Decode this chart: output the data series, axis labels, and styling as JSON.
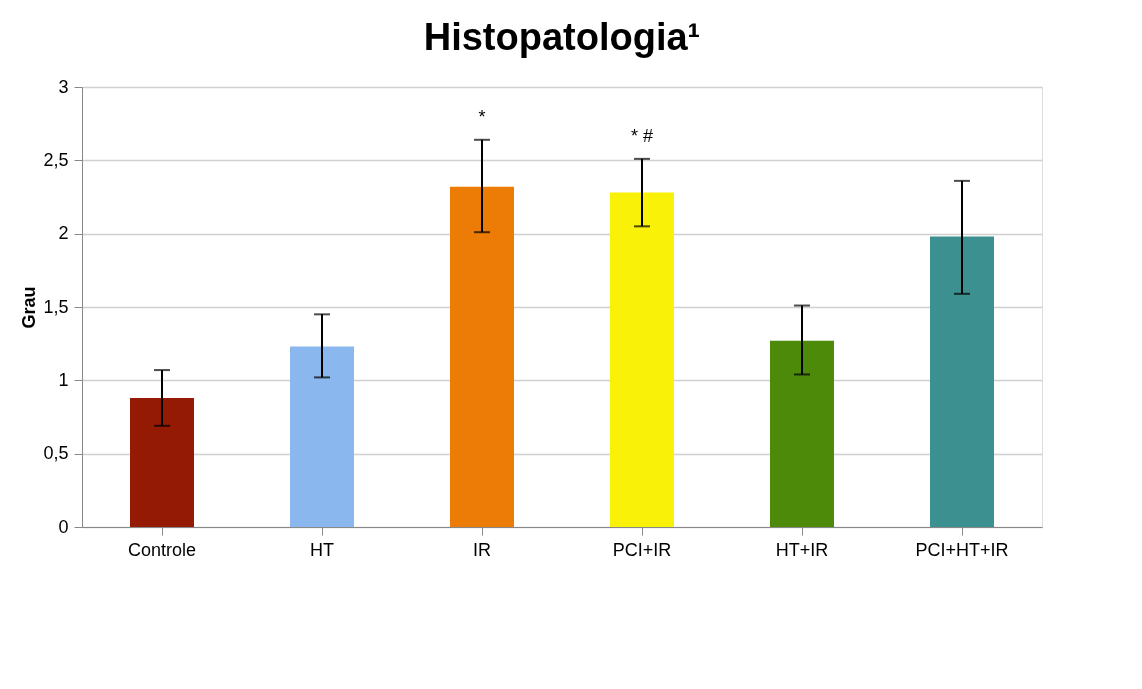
{
  "chart_data": {
    "type": "bar",
    "title": "Histopatologia¹",
    "ylabel": "Grau",
    "categories": [
      "Controle",
      "HT",
      "IR",
      "PCI+IR",
      "HT+IR",
      "PCI+HT+IR"
    ],
    "values": [
      0.88,
      1.23,
      2.32,
      2.28,
      1.27,
      1.98
    ],
    "colors": [
      "#951a04",
      "#8ab8ee",
      "#ec7c05",
      "#f9f208",
      "#4e8a0a",
      "#3d9090"
    ],
    "errors": [
      [
        0.69,
        1.07
      ],
      [
        1.02,
        1.45
      ],
      [
        2.01,
        2.64
      ],
      [
        2.05,
        2.51
      ],
      [
        1.04,
        1.51
      ],
      [
        1.59,
        2.36
      ]
    ],
    "ylim": [
      0,
      3
    ],
    "yticks": [
      0,
      {
        "value": 0.5,
        "label": "0,5"
      },
      1,
      {
        "value": 1.5,
        "label": "1,5"
      },
      2,
      {
        "value": 2.5,
        "label": "2,5"
      },
      3
    ],
    "grid": "y",
    "annotations": [
      {
        "text": "*",
        "x": "IR",
        "y": 2.64
      },
      {
        "text": "* #",
        "x": "PCI+IR",
        "y": 2.51
      }
    ]
  }
}
